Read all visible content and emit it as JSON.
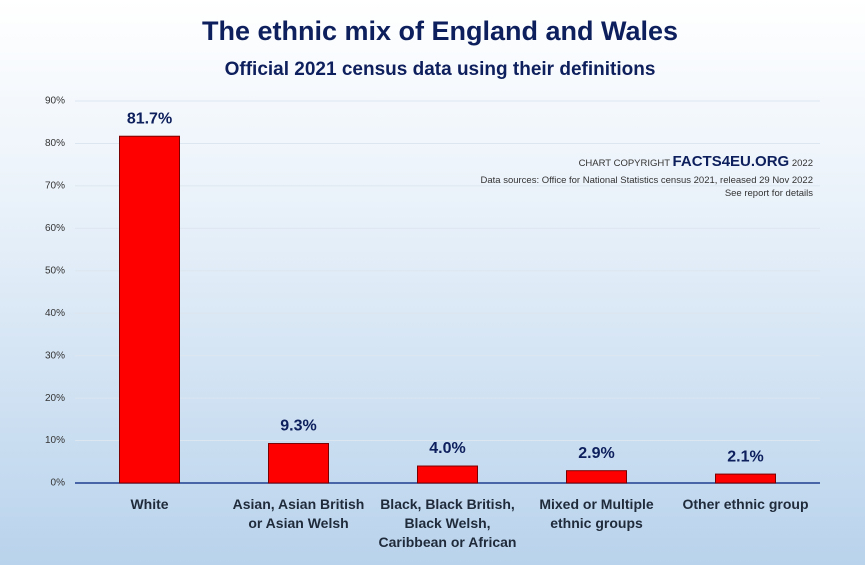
{
  "chart_data": {
    "type": "bar",
    "title": "The ethnic mix of England and Wales",
    "subtitle": "Official 2021 census data using their definitions",
    "categories": [
      "White",
      "Asian, Asian British\nor Asian Welsh",
      "Black, Black British,\nBlack Welsh,\nCaribbean or African",
      "Mixed or Multiple\nethnic groups",
      "Other ethnic group"
    ],
    "values": [
      81.7,
      9.3,
      4.0,
      2.9,
      2.1
    ],
    "value_labels": [
      "81.7%",
      "9.3%",
      "4.0%",
      "2.9%",
      "2.1%"
    ],
    "color": "#ff0000",
    "ylim": [
      0,
      90
    ],
    "yticks": [
      {
        "value": 0,
        "label": "0%"
      },
      {
        "value": 10,
        "label": "10%"
      },
      {
        "value": 20,
        "label": "20%"
      },
      {
        "value": 30,
        "label": "30%"
      },
      {
        "value": 40,
        "label": "40%"
      },
      {
        "value": 50,
        "label": "50%"
      },
      {
        "value": 60,
        "label": "60%"
      },
      {
        "value": 70,
        "label": "70%"
      },
      {
        "value": 80,
        "label": "80%"
      },
      {
        "value": 90,
        "label": "90%"
      }
    ],
    "grid": true,
    "annotations": {
      "copyright_prefix": "CHART COPYRIGHT",
      "copyright_brand": "FACTS4EU.ORG",
      "copyright_year": "2022",
      "source": "Data sources: Office for National Statistics census 2021, released 29 Nov 2022",
      "details": "See report for details"
    }
  }
}
